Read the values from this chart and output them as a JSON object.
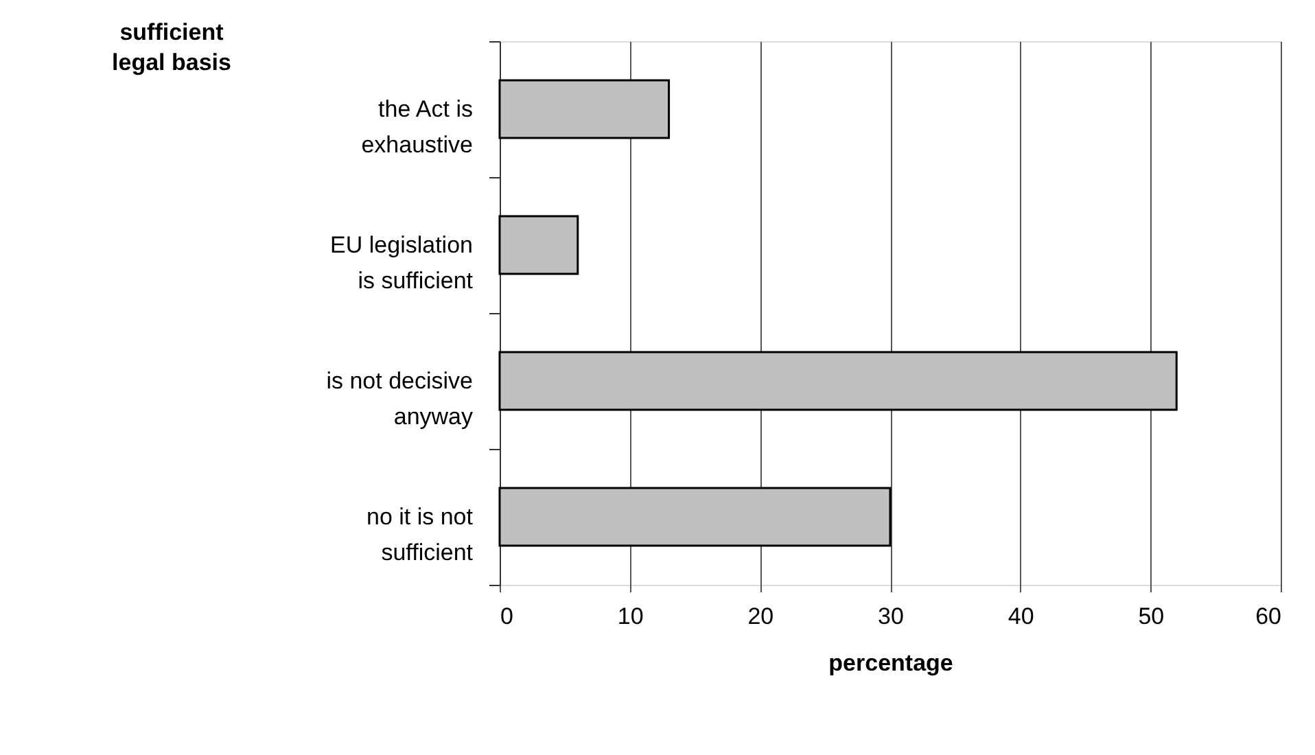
{
  "chart_data": {
    "type": "bar",
    "orientation": "horizontal",
    "categories": [
      "the Act is\nexhaustive",
      "EU legislation\nis sufficient",
      "is not decisive\nanyway",
      "no it is not\nsufficient"
    ],
    "values": [
      13,
      6,
      52,
      30
    ],
    "color": "#c0c0c0",
    "xlim": [
      0,
      60
    ],
    "xticks": [
      0,
      10,
      20,
      30,
      40,
      50,
      60
    ],
    "grid": "x",
    "xlabel": "percentage",
    "annotations": [
      "sufficient\nlegal basis"
    ]
  }
}
